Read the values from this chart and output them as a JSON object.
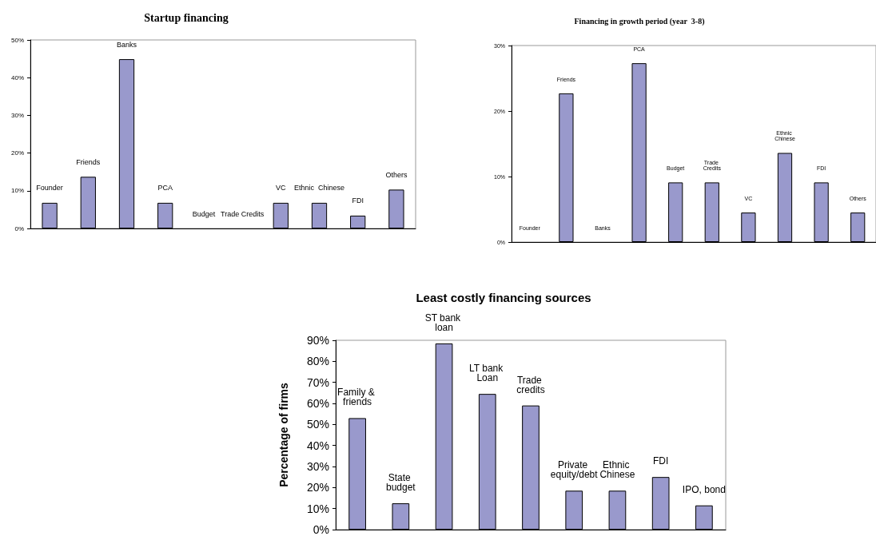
{
  "chart_data": [
    {
      "type": "bar",
      "title": "Startup financing",
      "categories": [
        "Founder",
        "Friends",
        "Banks",
        "PCA",
        "Budget",
        "Trade Credits",
        "VC",
        "Ethnic  Chinese",
        "FDI",
        "Others"
      ],
      "values": [
        6.8,
        13.7,
        44.9,
        6.8,
        0,
        0,
        6.8,
        6.8,
        3.4,
        10.3
      ],
      "color": "#9999cc",
      "ylim": [
        0,
        50
      ],
      "yticks": [
        {
          "value": 0,
          "label": "0%"
        },
        {
          "value": 10,
          "label": "10%"
        },
        {
          "value": 20,
          "label": "20%"
        },
        {
          "value": 30,
          "label": "30%"
        },
        {
          "value": 40,
          "label": "40%"
        },
        {
          "value": 50,
          "label": "50%"
        }
      ],
      "grid": false
    },
    {
      "type": "bar",
      "title": "Financing in growth period (year  3-8)",
      "categories": [
        "Founder",
        "Friends",
        "Banks",
        "PCA",
        "Budget",
        "Trade Credits",
        "VC",
        "Ethnic Chinese",
        "FDI",
        "Others"
      ],
      "values": [
        0,
        22.7,
        0,
        27.3,
        9.1,
        9.1,
        4.5,
        13.6,
        9.1,
        4.5
      ],
      "color": "#9999cc",
      "ylim": [
        0,
        30
      ],
      "yticks": [
        {
          "value": 0,
          "label": "0%"
        },
        {
          "value": 10,
          "label": "10%"
        },
        {
          "value": 20,
          "label": "20%"
        },
        {
          "value": 30,
          "label": "30%"
        }
      ],
      "grid": false
    },
    {
      "type": "bar",
      "title": "Least costly financing sources",
      "ylabel": "Percentage of firms",
      "categories": [
        "Family & friends",
        "State budget",
        "ST bank loan",
        "LT bank Loan",
        "Trade credits",
        "Private equity/debt",
        "Ethnic Chinese",
        "FDI",
        "IPO, bond"
      ],
      "values": [
        53,
        12.5,
        88.5,
        64.5,
        59,
        18.5,
        18.5,
        25,
        11.5
      ],
      "color": "#9999cc",
      "ylim": [
        0,
        90
      ],
      "yticks": [
        {
          "value": 0,
          "label": "0%"
        },
        {
          "value": 10,
          "label": "10%"
        },
        {
          "value": 20,
          "label": "20%"
        },
        {
          "value": 30,
          "label": "30%"
        },
        {
          "value": 40,
          "label": "40%"
        },
        {
          "value": 50,
          "label": "50%"
        },
        {
          "value": 60,
          "label": "60%"
        },
        {
          "value": 70,
          "label": "70%"
        },
        {
          "value": 80,
          "label": "80%"
        },
        {
          "value": 90,
          "label": "90%"
        }
      ],
      "grid": false
    }
  ]
}
